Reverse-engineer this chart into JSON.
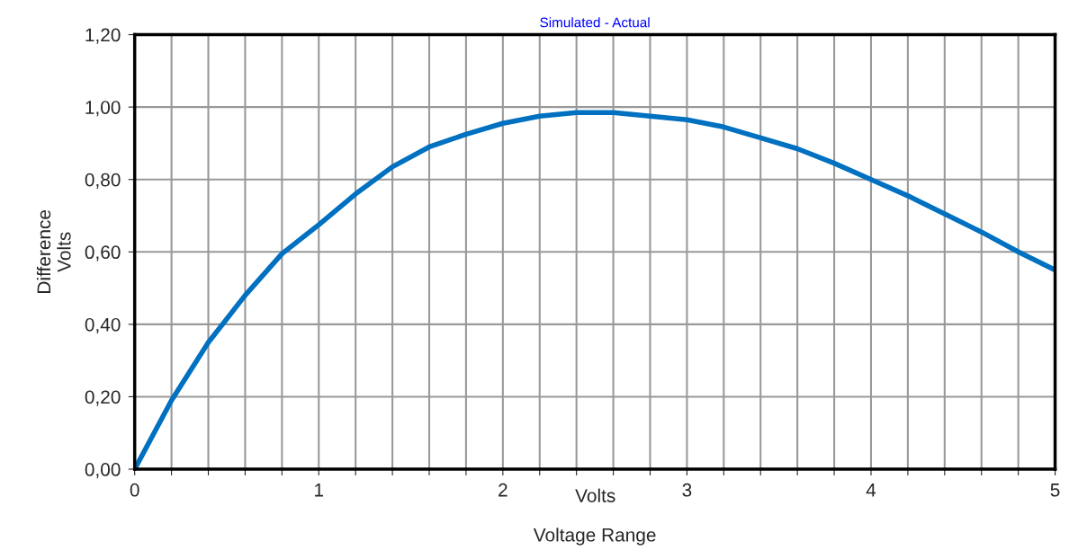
{
  "chart_data": {
    "type": "line",
    "title": "Simulated - Actual",
    "xlabel": "Voltage Range",
    "ylabel": "Difference\nVolts",
    "annotations": [
      "Volts"
    ],
    "x": [
      0,
      0.2,
      0.4,
      0.6,
      0.8,
      1.0,
      1.2,
      1.4,
      1.6,
      1.8,
      2.0,
      2.2,
      2.4,
      2.6,
      2.8,
      3.0,
      3.2,
      3.4,
      3.6,
      3.8,
      4.0,
      4.2,
      4.4,
      4.6,
      4.8,
      5.0
    ],
    "series": [
      {
        "color": "#0070c0",
        "values": [
          0,
          0.19,
          0.35,
          0.48,
          0.595,
          0.675,
          0.76,
          0.835,
          0.89,
          0.925,
          0.955,
          0.975,
          0.985,
          0.985,
          0.975,
          0.965,
          0.945,
          0.915,
          0.885,
          0.845,
          0.8,
          0.755,
          0.705,
          0.655,
          0.6,
          0.55
        ]
      }
    ],
    "xlim": [
      0,
      5
    ],
    "ylim": [
      0,
      1.2
    ],
    "xticks": [
      0,
      {
        "value": 0.2,
        "label": null
      },
      {
        "value": 0.4,
        "label": null
      },
      {
        "value": 0.6,
        "label": null
      },
      {
        "value": 0.8,
        "label": null
      },
      1,
      {
        "value": 1.2,
        "label": null
      },
      {
        "value": 1.4,
        "label": null
      },
      {
        "value": 1.6,
        "label": null
      },
      {
        "value": 1.8,
        "label": null
      },
      2,
      {
        "value": 2.2,
        "label": null
      },
      {
        "value": 2.4,
        "label": null
      },
      {
        "value": 2.6,
        "label": null
      },
      {
        "value": 2.8,
        "label": null
      },
      3,
      {
        "value": 3.2,
        "label": null
      },
      {
        "value": 3.4,
        "label": null
      },
      {
        "value": 3.6,
        "label": null
      },
      {
        "value": 3.8,
        "label": null
      },
      4,
      {
        "value": 4.2,
        "label": null
      },
      {
        "value": 4.4,
        "label": null
      },
      {
        "value": 4.6,
        "label": null
      },
      {
        "value": 4.8,
        "label": null
      },
      5
    ],
    "yticks": [
      {
        "value": 0,
        "label": "0,00"
      },
      {
        "value": 0.2,
        "label": "0,20"
      },
      {
        "value": 0.4,
        "label": "0,40"
      },
      {
        "value": 0.6,
        "label": "0,60"
      },
      {
        "value": 0.8,
        "label": "0,80"
      },
      {
        "value": 1.0,
        "label": "1,00"
      },
      {
        "value": 1.2,
        "label": "1,20"
      }
    ],
    "grid": true,
    "line_style": "solid",
    "marker": "none"
  }
}
